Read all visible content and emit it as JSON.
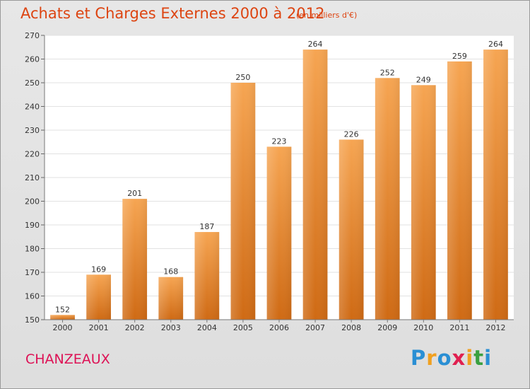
{
  "title": "Achats et Charges Externes 2000 à 2012",
  "subtitle": "(en milliers d'€)",
  "commune": "CHANZEAUX",
  "logo": {
    "letters": [
      "P",
      "r",
      "o",
      "x",
      "i",
      "t",
      "i"
    ],
    "colors": [
      "#2a8fd4",
      "#f0a020",
      "#2a8fd4",
      "#e02050",
      "#f0a020",
      "#3aa040",
      "#2a8fd4"
    ]
  },
  "colors": {
    "title": "#dd4411",
    "bar_top": "#f6a552",
    "bar_bottom": "#cf6a14",
    "commune": "#dd1155"
  },
  "chart_data": {
    "type": "bar",
    "categories": [
      "2000",
      "2001",
      "2002",
      "2003",
      "2004",
      "2005",
      "2006",
      "2007",
      "2008",
      "2009",
      "2010",
      "2011",
      "2012"
    ],
    "values": [
      152,
      169,
      201,
      168,
      187,
      250,
      223,
      264,
      226,
      252,
      249,
      259,
      264
    ],
    "ylim": [
      150,
      270
    ],
    "yticks": [
      150,
      160,
      170,
      180,
      190,
      200,
      210,
      220,
      230,
      240,
      250,
      260,
      270
    ],
    "grid": true,
    "data_labels": true
  }
}
